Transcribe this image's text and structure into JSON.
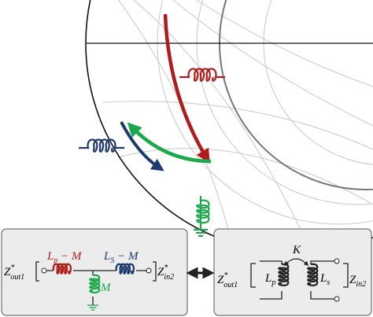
{
  "series_circuit": {
    "port_left": {
      "base": "Z",
      "sup": "*",
      "sub": "out1"
    },
    "inductor_primary": {
      "base": "L",
      "sub": "p",
      "rest": " − M"
    },
    "inductor_secondary": {
      "base": "L",
      "sub": "S",
      "rest": " − M"
    },
    "port_right": {
      "base": "Z",
      "sup": "*",
      "sub": "in2"
    },
    "inductor_shunt": "M"
  },
  "coupled_circuit": {
    "port_left": {
      "base": "Z",
      "sup": "*",
      "sub": "out1"
    },
    "coupling": "K",
    "inductor_primary": {
      "base": "L",
      "sub": "p"
    },
    "inductor_secondary": {
      "base": "L",
      "sub": "s"
    },
    "port_right": {
      "base": "Z",
      "sub": "in2"
    }
  }
}
